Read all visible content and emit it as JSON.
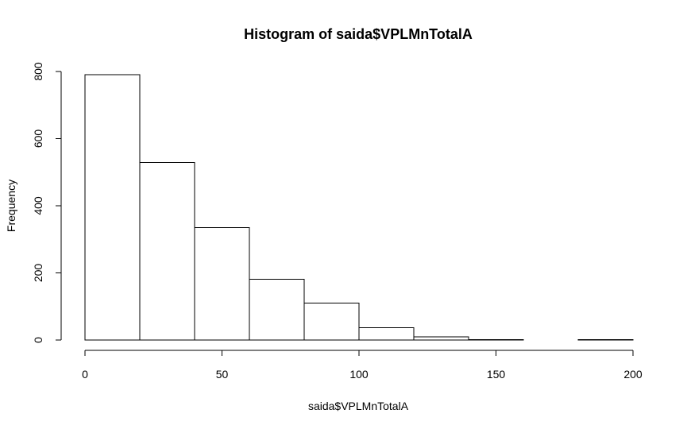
{
  "chart_data": {
    "type": "bar",
    "subtype": "histogram",
    "title": "Histogram of saida$VPLMnTotalA",
    "xlabel": "saida$VPLMnTotalA",
    "ylabel": "Frequency",
    "bins": [
      {
        "start": 0,
        "end": 20,
        "count": 790
      },
      {
        "start": 20,
        "end": 40,
        "count": 529
      },
      {
        "start": 40,
        "end": 60,
        "count": 335
      },
      {
        "start": 60,
        "end": 80,
        "count": 181
      },
      {
        "start": 80,
        "end": 100,
        "count": 110
      },
      {
        "start": 100,
        "end": 120,
        "count": 37
      },
      {
        "start": 120,
        "end": 140,
        "count": 9
      },
      {
        "start": 140,
        "end": 160,
        "count": 1
      },
      {
        "start": 160,
        "end": 180,
        "count": 0
      },
      {
        "start": 180,
        "end": 200,
        "count": 1
      }
    ],
    "xlim": [
      0,
      200
    ],
    "ylim": [
      0,
      800
    ],
    "xticks": [
      0,
      50,
      100,
      150,
      200
    ],
    "yticks": [
      0,
      200,
      400,
      600,
      800
    ],
    "grid": false,
    "legend": false,
    "bar_fill": "#ffffff",
    "bar_stroke": "#000000"
  }
}
